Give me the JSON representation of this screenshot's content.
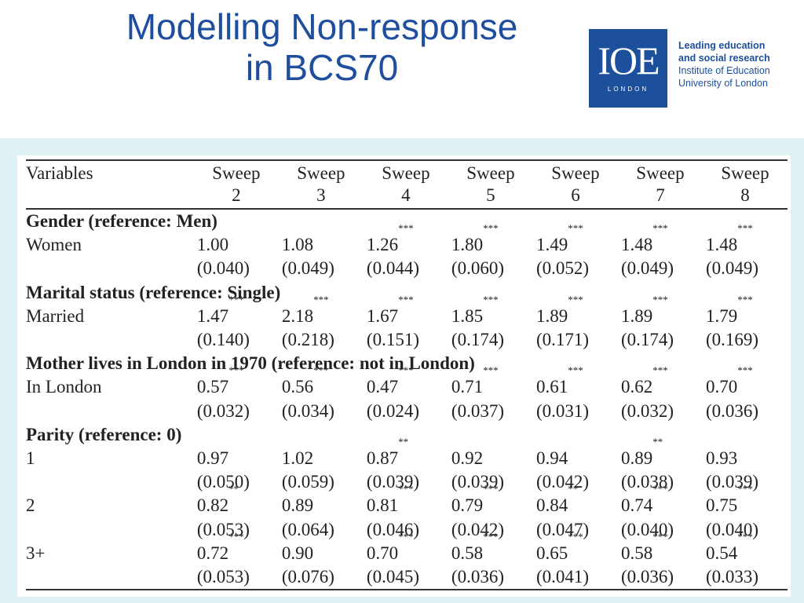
{
  "slide": {
    "title_line1": "Modelling Non-response",
    "title_line2": "in BCS70"
  },
  "logo": {
    "mark": "IOE",
    "sub": "LONDON",
    "line1": "Leading education",
    "line2": "and social research",
    "line3": "Institute of Education",
    "line4": "University of London",
    "brand_color": "#1c4f9c"
  },
  "table": {
    "header": {
      "variables": "Variables",
      "sweeps": [
        {
          "word": "Sweep",
          "num": "2"
        },
        {
          "word": "Sweep",
          "num": "3"
        },
        {
          "word": "Sweep",
          "num": "4"
        },
        {
          "word": "Sweep",
          "num": "5"
        },
        {
          "word": "Sweep",
          "num": "6"
        },
        {
          "word": "Sweep",
          "num": "7"
        },
        {
          "word": "Sweep",
          "num": "8"
        }
      ]
    },
    "sections": [
      {
        "heading": "Gender (reference: Men)",
        "rows": [
          {
            "label": "Women",
            "values": [
              {
                "v": "1.00",
                "s": ""
              },
              {
                "v": "1.08",
                "s": ""
              },
              {
                "v": "1.26",
                "s": "***"
              },
              {
                "v": "1.80",
                "s": "***"
              },
              {
                "v": "1.49",
                "s": "***"
              },
              {
                "v": "1.48",
                "s": "***"
              },
              {
                "v": "1.48",
                "s": "***"
              }
            ],
            "se": [
              "(0.040)",
              "(0.049)",
              "(0.044)",
              "(0.060)",
              "(0.052)",
              "(0.049)",
              "(0.049)"
            ]
          }
        ]
      },
      {
        "heading": "Marital status (reference: Single)",
        "rows": [
          {
            "label": "Married",
            "values": [
              {
                "v": "1.47",
                "s": "***"
              },
              {
                "v": "2.18",
                "s": "***"
              },
              {
                "v": "1.67",
                "s": "***"
              },
              {
                "v": "1.85",
                "s": "***"
              },
              {
                "v": "1.89",
                "s": "***"
              },
              {
                "v": "1.89",
                "s": "***"
              },
              {
                "v": "1.79",
                "s": "***"
              }
            ],
            "se": [
              "(0.140)",
              "(0.218)",
              "(0.151)",
              "(0.174)",
              "(0.171)",
              "(0.174)",
              "(0.169)"
            ]
          }
        ]
      },
      {
        "heading": "Mother lives in London in 1970 (reference: not in London)",
        "rows": [
          {
            "label": "In London",
            "values": [
              {
                "v": "0.57",
                "s": "***"
              },
              {
                "v": "0.56",
                "s": "***"
              },
              {
                "v": "0.47",
                "s": "***"
              },
              {
                "v": "0.71",
                "s": "***"
              },
              {
                "v": "0.61",
                "s": "***"
              },
              {
                "v": "0.62",
                "s": "***"
              },
              {
                "v": "0.70",
                "s": "***"
              }
            ],
            "se": [
              "(0.032)",
              "(0.034)",
              "(0.024)",
              "(0.037)",
              "(0.031)",
              "(0.032)",
              "(0.036)"
            ]
          }
        ]
      },
      {
        "heading": "Parity (reference: 0)",
        "rows": [
          {
            "label": "1",
            "values": [
              {
                "v": "0.97",
                "s": ""
              },
              {
                "v": "1.02",
                "s": ""
              },
              {
                "v": "0.87",
                "s": "**"
              },
              {
                "v": "0.92",
                "s": ""
              },
              {
                "v": "0.94",
                "s": ""
              },
              {
                "v": "0.89",
                "s": "**"
              },
              {
                "v": "0.93",
                "s": ""
              }
            ],
            "se": [
              "(0.050)",
              "(0.059)",
              "(0.039)",
              "(0.039)",
              "(0.042)",
              "(0.038)",
              "(0.039)"
            ]
          },
          {
            "label": "2",
            "values": [
              {
                "v": "0.82",
                "s": "**"
              },
              {
                "v": "0.89",
                "s": ""
              },
              {
                "v": "0.81",
                "s": "***"
              },
              {
                "v": "0.79",
                "s": "***"
              },
              {
                "v": "0.84",
                "s": "**"
              },
              {
                "v": "0.74",
                "s": "***"
              },
              {
                "v": "0.75",
                "s": "***"
              }
            ],
            "se": [
              "(0.053)",
              "(0.064)",
              "(0.046)",
              "(0.042)",
              "(0.047)",
              "(0.040)",
              "(0.040)"
            ]
          },
          {
            "label": "3+",
            "values": [
              {
                "v": "0.72",
                "s": "***"
              },
              {
                "v": "0.90",
                "s": ""
              },
              {
                "v": "0.70",
                "s": "***"
              },
              {
                "v": "0.58",
                "s": "***"
              },
              {
                "v": "0.65",
                "s": "***"
              },
              {
                "v": "0.58",
                "s": "***"
              },
              {
                "v": "0.54",
                "s": "***"
              }
            ],
            "se": [
              "(0.053)",
              "(0.076)",
              "(0.045)",
              "(0.036)",
              "(0.041)",
              "(0.036)",
              "(0.033)"
            ]
          }
        ]
      }
    ]
  }
}
